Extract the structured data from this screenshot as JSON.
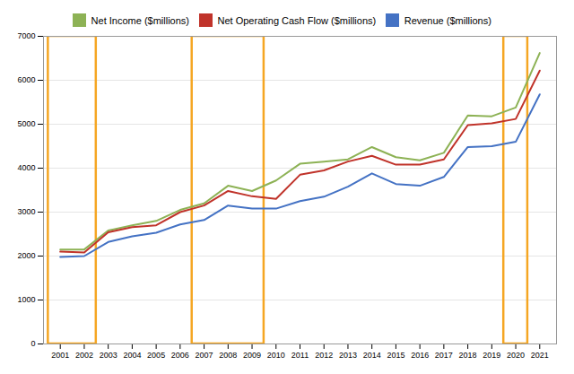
{
  "chart_data": {
    "type": "line",
    "x": [
      2001,
      2002,
      2003,
      2004,
      2005,
      2006,
      2007,
      2008,
      2009,
      2010,
      2011,
      2012,
      2013,
      2014,
      2015,
      2016,
      2017,
      2018,
      2019,
      2020,
      2021
    ],
    "series": [
      {
        "name": "Net Income ($millions)",
        "color": "#8DB255",
        "values": [
          2150,
          2150,
          2580,
          2700,
          2800,
          3050,
          3200,
          3600,
          3480,
          3720,
          4100,
          4150,
          4200,
          4480,
          4250,
          4180,
          4350,
          5200,
          5180,
          5380,
          6620
        ]
      },
      {
        "name": "Net Operating Cash Flow ($millions)",
        "color": "#C0332A",
        "values": [
          2100,
          2080,
          2540,
          2660,
          2700,
          3000,
          3150,
          3480,
          3360,
          3300,
          3850,
          3950,
          4150,
          4280,
          4080,
          4080,
          4200,
          4980,
          5020,
          5120,
          6220
        ]
      },
      {
        "name": "Revenue ($millions)",
        "color": "#4472C4",
        "values": [
          1980,
          2000,
          2320,
          2450,
          2530,
          2720,
          2820,
          3150,
          3080,
          3080,
          3250,
          3350,
          3580,
          3880,
          3640,
          3600,
          3800,
          4480,
          4500,
          4600,
          5680
        ]
      }
    ],
    "xlim": [
      2000.3,
      2021.7
    ],
    "xticks": [
      2001,
      2002,
      2003,
      2004,
      2005,
      2006,
      2007,
      2008,
      2009,
      2010,
      2011,
      2012,
      2013,
      2014,
      2015,
      2016,
      2017,
      2018,
      2019,
      2020,
      2021
    ],
    "ylim": [
      0,
      7000
    ],
    "yticks": [
      0,
      1000,
      2000,
      3000,
      4000,
      5000,
      6000,
      7000
    ],
    "grid": true,
    "legend": "upper center",
    "shaded_ranges": [
      {
        "xmin": 2000.5,
        "xmax": 2002.5,
        "color": "#F5A623"
      },
      {
        "xmin": 2006.5,
        "xmax": 2009.5,
        "color": "#F5A623"
      },
      {
        "xmin": 2019.5,
        "xmax": 2020.5,
        "color": "#F5A623"
      }
    ]
  }
}
